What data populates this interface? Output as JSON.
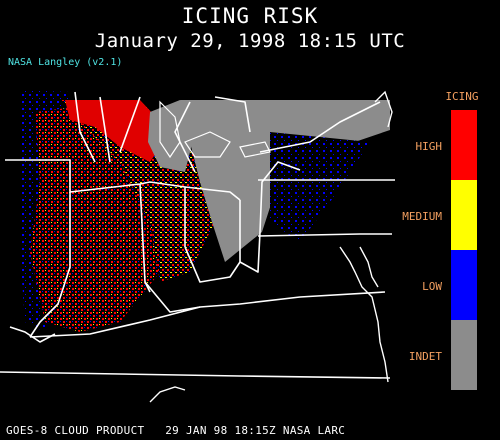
{
  "title": "ICING RISK",
  "subtitle": "January 29, 1998 18:15 UTC",
  "credit": "NASA Langley (v2.1)",
  "legend": {
    "title": "ICING",
    "items": [
      {
        "label": "HIGH",
        "color": "#ff0000"
      },
      {
        "label": "MEDIUM",
        "color": "#ffff00"
      },
      {
        "label": "LOW",
        "color": "#0000ff"
      },
      {
        "label": "INDET",
        "color": "#8c8c8c"
      }
    ]
  },
  "footer": "GOES-8 CLOUD PRODUCT   29 JAN 98 18:15Z NASA LARC"
}
